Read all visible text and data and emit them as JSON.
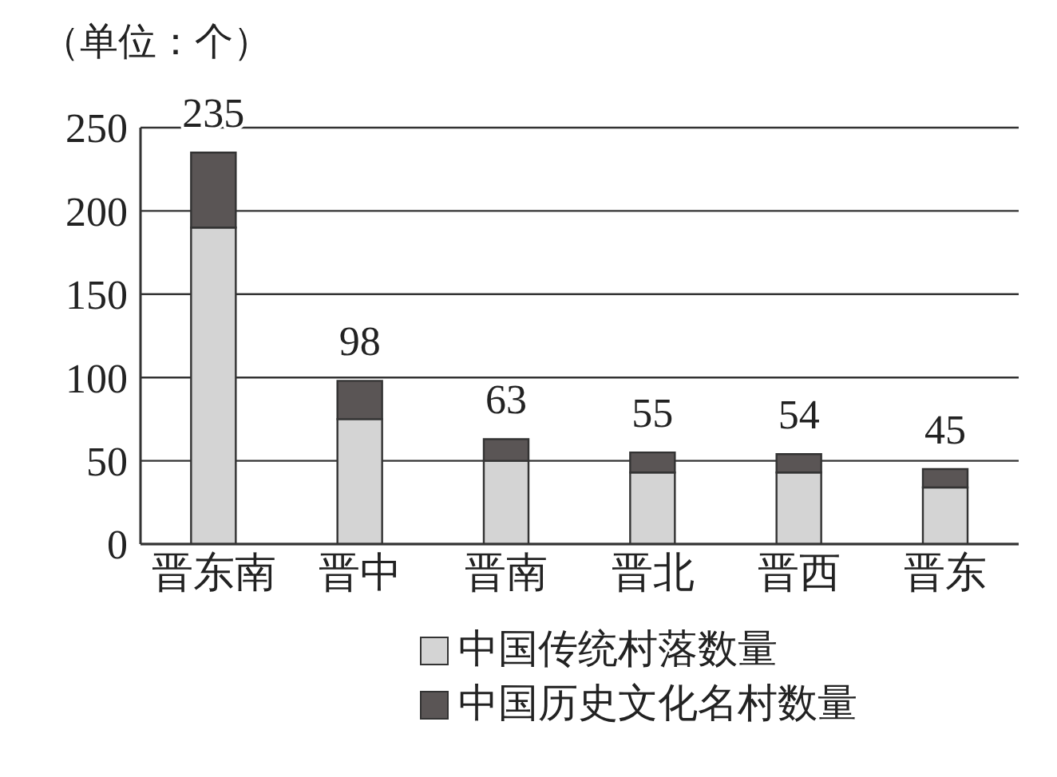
{
  "chart_data": {
    "type": "bar",
    "ylabel": "（单位：个）",
    "categories": [
      "晋东南",
      "晋中",
      "晋南",
      "晋北",
      "晋西",
      "晋东"
    ],
    "series": [
      {
        "name": "中国传统村落数量",
        "color": "#d4d4d4",
        "values": [
          190,
          75,
          50,
          43,
          43,
          34
        ]
      },
      {
        "name": "中国历史文化名村数量",
        "color": "#5a5555",
        "values": [
          45,
          23,
          13,
          12,
          11,
          11
        ]
      }
    ],
    "stacked": true,
    "totals": [
      "235",
      "98",
      "63",
      "55",
      "54",
      "45"
    ],
    "ylim": [
      0,
      250
    ],
    "yticks": [
      0,
      50,
      100,
      150,
      200,
      250
    ],
    "grid": "y",
    "legend": "bottom right"
  }
}
